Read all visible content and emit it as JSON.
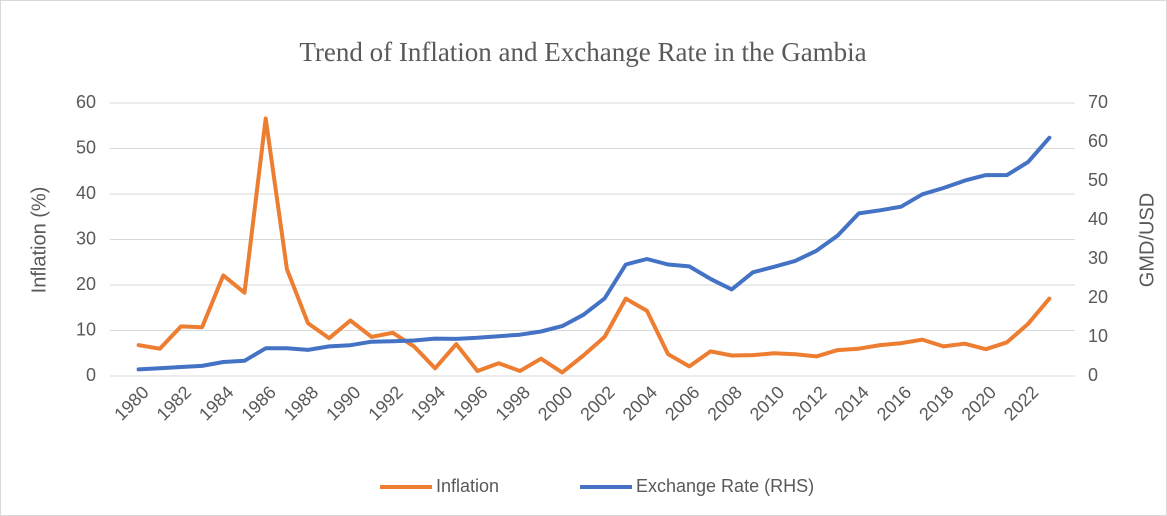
{
  "chart_data": {
    "type": "line",
    "title": "Trend of Inflation and Exchange Rate in the Gambia",
    "y_label": "Inflation (%)",
    "y2_label": "GMD/USD",
    "categories": [
      "1980",
      null,
      "1982",
      null,
      "1984",
      null,
      "1986",
      null,
      "1988",
      null,
      "1990",
      null,
      "1992",
      null,
      "1994",
      null,
      "1996",
      null,
      "1998",
      null,
      "2000",
      null,
      "2002",
      null,
      "2004",
      null,
      "2006",
      null,
      "2008",
      null,
      "2010",
      null,
      "2012",
      null,
      "2014",
      null,
      "2016",
      null,
      "2018",
      null,
      "2020",
      null,
      "2022",
      null
    ],
    "series": [
      {
        "name": "Inflation",
        "color": "#ed7d31",
        "values": [
          6.8,
          6.0,
          10.9,
          10.7,
          22.1,
          18.3,
          56.6,
          23.5,
          11.6,
          8.3,
          12.2,
          8.6,
          9.5,
          6.5,
          1.7,
          7.0,
          1.1,
          2.8,
          1.1,
          3.8,
          0.8,
          4.5,
          8.6,
          17.0,
          14.3,
          4.8,
          2.1,
          5.4,
          4.5,
          4.6,
          5.0,
          4.8,
          4.3,
          5.7,
          6.0,
          6.8,
          7.2,
          8.0,
          6.5,
          7.1,
          5.9,
          7.4,
          11.5,
          17.0
        ]
      },
      {
        "name": "Exchange Rate (RHS)",
        "color": "#4472c4",
        "axis": "y2",
        "values": [
          1.7,
          2.0,
          2.3,
          2.6,
          3.6,
          3.9,
          7.1,
          7.1,
          6.7,
          7.6,
          7.9,
          8.8,
          8.9,
          9.1,
          9.6,
          9.5,
          9.8,
          10.2,
          10.6,
          11.4,
          12.8,
          15.7,
          19.9,
          28.6,
          30.0,
          28.6,
          28.1,
          24.9,
          22.2,
          26.6,
          28.0,
          29.5,
          32.1,
          36.0,
          41.7,
          42.5,
          43.4,
          46.6,
          48.2,
          50.1,
          51.5,
          51.5,
          54.9,
          61.1
        ]
      }
    ],
    "ylim": [
      0,
      60
    ],
    "yticks": [
      0,
      10,
      20,
      30,
      40,
      50,
      60
    ],
    "y2lim": [
      0,
      70
    ],
    "y2ticks": [
      0,
      10,
      20,
      30,
      40,
      50,
      60,
      70
    ],
    "grid": true,
    "legend": "bottom"
  }
}
